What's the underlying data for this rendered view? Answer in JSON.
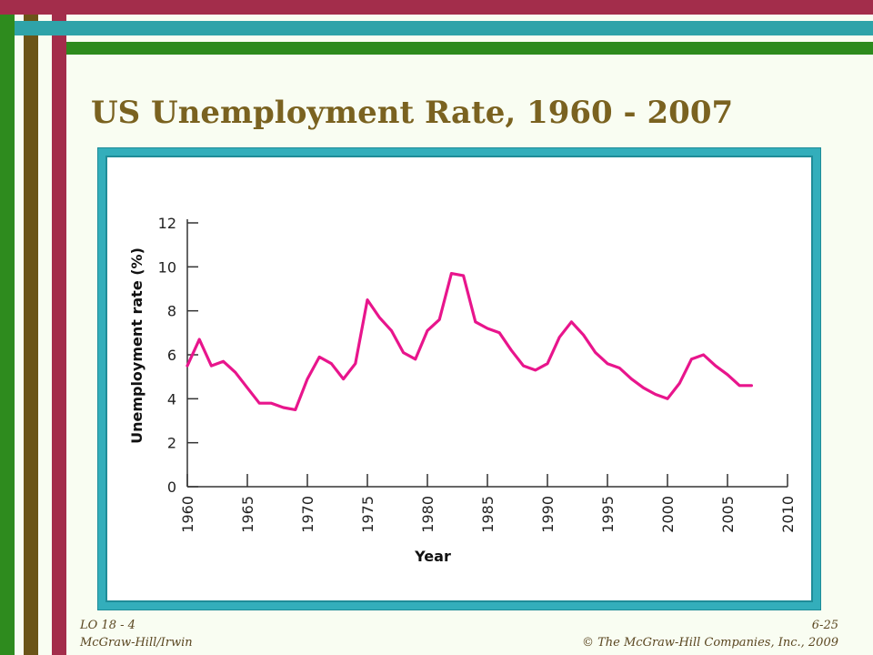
{
  "slide": {
    "title": "US Unemployment Rate, 1960 - 2007",
    "footer": {
      "lo": "LO 18 - 4",
      "publisher": "McGraw-Hill/Irwin",
      "page": "6-25",
      "copyright": "© The McGraw-Hill Companies, Inc., 2009"
    }
  },
  "colors": {
    "line": "#e8158c",
    "frame": "#33aebb",
    "title": "#7a6220"
  },
  "chart_data": {
    "type": "line",
    "title": "US Unemployment Rate, 1960 - 2007",
    "xlabel": "Year",
    "ylabel": "Unemployment rate (%)",
    "xlim": [
      1960,
      2010
    ],
    "ylim": [
      0,
      12
    ],
    "xticks": [
      1960,
      1965,
      1970,
      1975,
      1980,
      1985,
      1990,
      1995,
      2000,
      2005,
      2010
    ],
    "yticks": [
      0,
      2,
      4,
      6,
      8,
      10,
      12
    ],
    "grid": false,
    "x": [
      1960,
      1961,
      1962,
      1963,
      1964,
      1965,
      1966,
      1967,
      1968,
      1969,
      1970,
      1971,
      1972,
      1973,
      1974,
      1975,
      1976,
      1977,
      1978,
      1979,
      1980,
      1981,
      1982,
      1983,
      1984,
      1985,
      1986,
      1987,
      1988,
      1989,
      1990,
      1991,
      1992,
      1993,
      1994,
      1995,
      1996,
      1997,
      1998,
      1999,
      2000,
      2001,
      2002,
      2003,
      2004,
      2005,
      2006,
      2007
    ],
    "series": [
      {
        "values": [
          5.5,
          6.7,
          5.5,
          5.7,
          5.2,
          4.5,
          3.8,
          3.8,
          3.6,
          3.5,
          4.9,
          5.9,
          5.6,
          4.9,
          5.6,
          8.5,
          7.7,
          7.1,
          6.1,
          5.8,
          7.1,
          7.6,
          9.7,
          9.6,
          7.5,
          7.2,
          7.0,
          6.2,
          5.5,
          5.3,
          5.6,
          6.8,
          7.5,
          6.9,
          6.1,
          5.6,
          5.4,
          4.9,
          4.5,
          4.2,
          4.0,
          4.7,
          5.8,
          6.0,
          5.5,
          5.1,
          4.6,
          4.6
        ]
      }
    ]
  }
}
